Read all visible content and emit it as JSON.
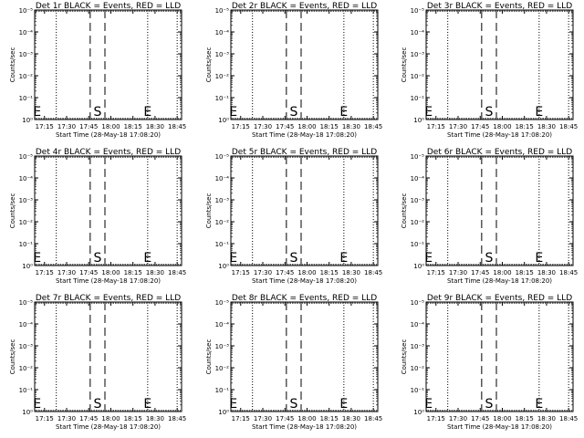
{
  "chart_data": [
    {
      "type": "line",
      "title": "Det 1r BLACK = Events, RED = LLD",
      "xlabel": "Start Time (28-May-18 17:08:20)",
      "ylabel": "Counts/sec",
      "xticks": [
        "17:15",
        "17:30",
        "17:45",
        "18:00",
        "18:15",
        "18:30",
        "18:45"
      ],
      "yticks": [
        "10⁰",
        "10⁻¹",
        "10⁻²",
        "10⁻³",
        "10⁻⁴",
        "10⁻⁵"
      ],
      "yscale": "log",
      "ylim": [
        1,
        100000
      ],
      "xlim": [
        "17:08:20",
        "18:48"
      ],
      "markers": [
        {
          "label": "E",
          "time": "17:10"
        },
        {
          "label": "S",
          "time": "17:51"
        },
        {
          "label": "E",
          "time": "18:25"
        }
      ],
      "dotted_lines": [
        "17:23",
        "18:25",
        "18:45"
      ],
      "dashed_lines": [
        "17:46",
        "17:56"
      ],
      "series": []
    },
    {
      "type": "line",
      "title": "Det 2r BLACK = Events, RED = LLD",
      "xlabel": "Start Time (28-May-18 17:08:20)",
      "ylabel": "Counts/sec",
      "xticks": [
        "17:15",
        "17:30",
        "17:45",
        "18:00",
        "18:15",
        "18:30",
        "18:45"
      ],
      "yticks": [
        "10⁰",
        "10⁻¹",
        "10⁻²",
        "10⁻³",
        "10⁻⁴",
        "10⁻⁵"
      ],
      "yscale": "log",
      "ylim": [
        1,
        100000
      ],
      "xlim": [
        "17:08:20",
        "18:48"
      ],
      "markers": [
        {
          "label": "E",
          "time": "17:10"
        },
        {
          "label": "S",
          "time": "17:51"
        },
        {
          "label": "E",
          "time": "18:25"
        }
      ],
      "dotted_lines": [
        "17:23",
        "18:25",
        "18:45"
      ],
      "dashed_lines": [
        "17:46",
        "17:56"
      ],
      "series": []
    },
    {
      "type": "line",
      "title": "Det 3r BLACK = Events, RED = LLD",
      "xlabel": "Start Time (28-May-18 17:08:20)",
      "ylabel": "Counts/sec",
      "xticks": [
        "17:15",
        "17:30",
        "17:45",
        "18:00",
        "18:15",
        "18:30",
        "18:45"
      ],
      "yticks": [
        "10⁰",
        "10⁻¹",
        "10⁻²",
        "10⁻³",
        "10⁻⁴",
        "10⁻⁵"
      ],
      "yscale": "log",
      "ylim": [
        1,
        100000
      ],
      "xlim": [
        "17:08:20",
        "18:48"
      ],
      "markers": [
        {
          "label": "E",
          "time": "17:10"
        },
        {
          "label": "S",
          "time": "17:51"
        },
        {
          "label": "E",
          "time": "18:25"
        }
      ],
      "dotted_lines": [
        "17:23",
        "18:25",
        "18:45"
      ],
      "dashed_lines": [
        "17:46",
        "17:56"
      ],
      "series": []
    },
    {
      "type": "line",
      "title": "Det 4r BLACK = Events, RED = LLD",
      "xlabel": "Start Time (28-May-18 17:08:20)",
      "ylabel": "Counts/sec",
      "xticks": [
        "17:15",
        "17:30",
        "17:45",
        "18:00",
        "18:15",
        "18:30",
        "18:45"
      ],
      "yticks": [
        "10⁰",
        "10⁻¹",
        "10⁻²",
        "10⁻³",
        "10⁻⁴",
        "10⁻⁵"
      ],
      "yscale": "log",
      "ylim": [
        1,
        100000
      ],
      "xlim": [
        "17:08:20",
        "18:48"
      ],
      "markers": [
        {
          "label": "E",
          "time": "17:10"
        },
        {
          "label": "S",
          "time": "17:51"
        },
        {
          "label": "E",
          "time": "18:25"
        }
      ],
      "dotted_lines": [
        "17:23",
        "18:25",
        "18:45"
      ],
      "dashed_lines": [
        "17:46",
        "17:56"
      ],
      "series": []
    },
    {
      "type": "line",
      "title": "Det 5r BLACK = Events, RED = LLD",
      "xlabel": "Start Time (28-May-18 17:08:20)",
      "ylabel": "Counts/sec",
      "xticks": [
        "17:15",
        "17:30",
        "17:45",
        "18:00",
        "18:15",
        "18:30",
        "18:45"
      ],
      "yticks": [
        "10⁰",
        "10⁻¹",
        "10⁻²",
        "10⁻³",
        "10⁻⁴",
        "10⁻⁵"
      ],
      "yscale": "log",
      "ylim": [
        1,
        100000
      ],
      "xlim": [
        "17:08:20",
        "18:48"
      ],
      "markers": [
        {
          "label": "E",
          "time": "17:10"
        },
        {
          "label": "S",
          "time": "17:51"
        },
        {
          "label": "E",
          "time": "18:25"
        }
      ],
      "dotted_lines": [
        "17:23",
        "18:25",
        "18:45"
      ],
      "dashed_lines": [
        "17:46",
        "17:56"
      ],
      "series": []
    },
    {
      "type": "line",
      "title": "Det 6r BLACK = Events, RED = LLD",
      "xlabel": "Start Time (28-May-18 17:08:20)",
      "ylabel": "Counts/sec",
      "xticks": [
        "17:15",
        "17:30",
        "17:45",
        "18:00",
        "18:15",
        "18:30",
        "18:45"
      ],
      "yticks": [
        "10⁰",
        "10⁻¹",
        "10⁻²",
        "10⁻³",
        "10⁻⁴",
        "10⁻⁵"
      ],
      "yscale": "log",
      "ylim": [
        1,
        100000
      ],
      "xlim": [
        "17:08:20",
        "18:48"
      ],
      "markers": [
        {
          "label": "E",
          "time": "17:10"
        },
        {
          "label": "S",
          "time": "17:51"
        },
        {
          "label": "E",
          "time": "18:25"
        }
      ],
      "dotted_lines": [
        "17:23",
        "18:25",
        "18:45"
      ],
      "dashed_lines": [
        "17:46",
        "17:56"
      ],
      "series": []
    },
    {
      "type": "line",
      "title": "Det 7r BLACK = Events, RED = LLD",
      "xlabel": "Start Time (28-May-18 17:08:20)",
      "ylabel": "Counts/sec",
      "xticks": [
        "17:15",
        "17:30",
        "17:45",
        "18:00",
        "18:15",
        "18:30",
        "18:45"
      ],
      "yticks": [
        "10⁰",
        "10⁻¹",
        "10⁻²",
        "10⁻³",
        "10⁻⁴",
        "10⁻⁵"
      ],
      "yscale": "log",
      "ylim": [
        1,
        100000
      ],
      "xlim": [
        "17:08:20",
        "18:48"
      ],
      "markers": [
        {
          "label": "E",
          "time": "17:10"
        },
        {
          "label": "S",
          "time": "17:51"
        },
        {
          "label": "E",
          "time": "18:25"
        }
      ],
      "dotted_lines": [
        "17:23",
        "18:25",
        "18:45"
      ],
      "dashed_lines": [
        "17:46",
        "17:56"
      ],
      "series": []
    },
    {
      "type": "line",
      "title": "Det 8r BLACK = Events, RED = LLD",
      "xlabel": "Start Time (28-May-18 17:08:20)",
      "ylabel": "Counts/sec",
      "xticks": [
        "17:15",
        "17:30",
        "17:45",
        "18:00",
        "18:15",
        "18:30",
        "18:45"
      ],
      "yticks": [
        "10⁰",
        "10⁻¹",
        "10⁻²",
        "10⁻³",
        "10⁻⁴",
        "10⁻⁵"
      ],
      "yscale": "log",
      "ylim": [
        1,
        100000
      ],
      "xlim": [
        "17:08:20",
        "18:48"
      ],
      "markers": [
        {
          "label": "E",
          "time": "17:10"
        },
        {
          "label": "S",
          "time": "17:51"
        },
        {
          "label": "E",
          "time": "18:25"
        }
      ],
      "dotted_lines": [
        "17:23",
        "18:25",
        "18:45"
      ],
      "dashed_lines": [
        "17:46",
        "17:56"
      ],
      "series": []
    },
    {
      "type": "line",
      "title": "Det 9r BLACK = Events, RED = LLD",
      "xlabel": "Start Time (28-May-18 17:08:20)",
      "ylabel": "Counts/sec",
      "xticks": [
        "17:15",
        "17:30",
        "17:45",
        "18:00",
        "18:15",
        "18:30",
        "18:45"
      ],
      "yticks": [
        "10⁰",
        "10⁻¹",
        "10⁻²",
        "10⁻³",
        "10⁻⁴",
        "10⁻⁵"
      ],
      "yscale": "log",
      "ylim": [
        1,
        100000
      ],
      "xlim": [
        "17:08:20",
        "18:48"
      ],
      "markers": [
        {
          "label": "E",
          "time": "17:10"
        },
        {
          "label": "S",
          "time": "17:51"
        },
        {
          "label": "E",
          "time": "18:25"
        }
      ],
      "dotted_lines": [
        "17:23",
        "18:25",
        "18:45"
      ],
      "dashed_lines": [
        "17:46",
        "17:56"
      ],
      "series": []
    }
  ],
  "colors": {
    "background": "#ffffff",
    "axes": "#000000",
    "events": "#000000",
    "lld": "#ff0000"
  }
}
